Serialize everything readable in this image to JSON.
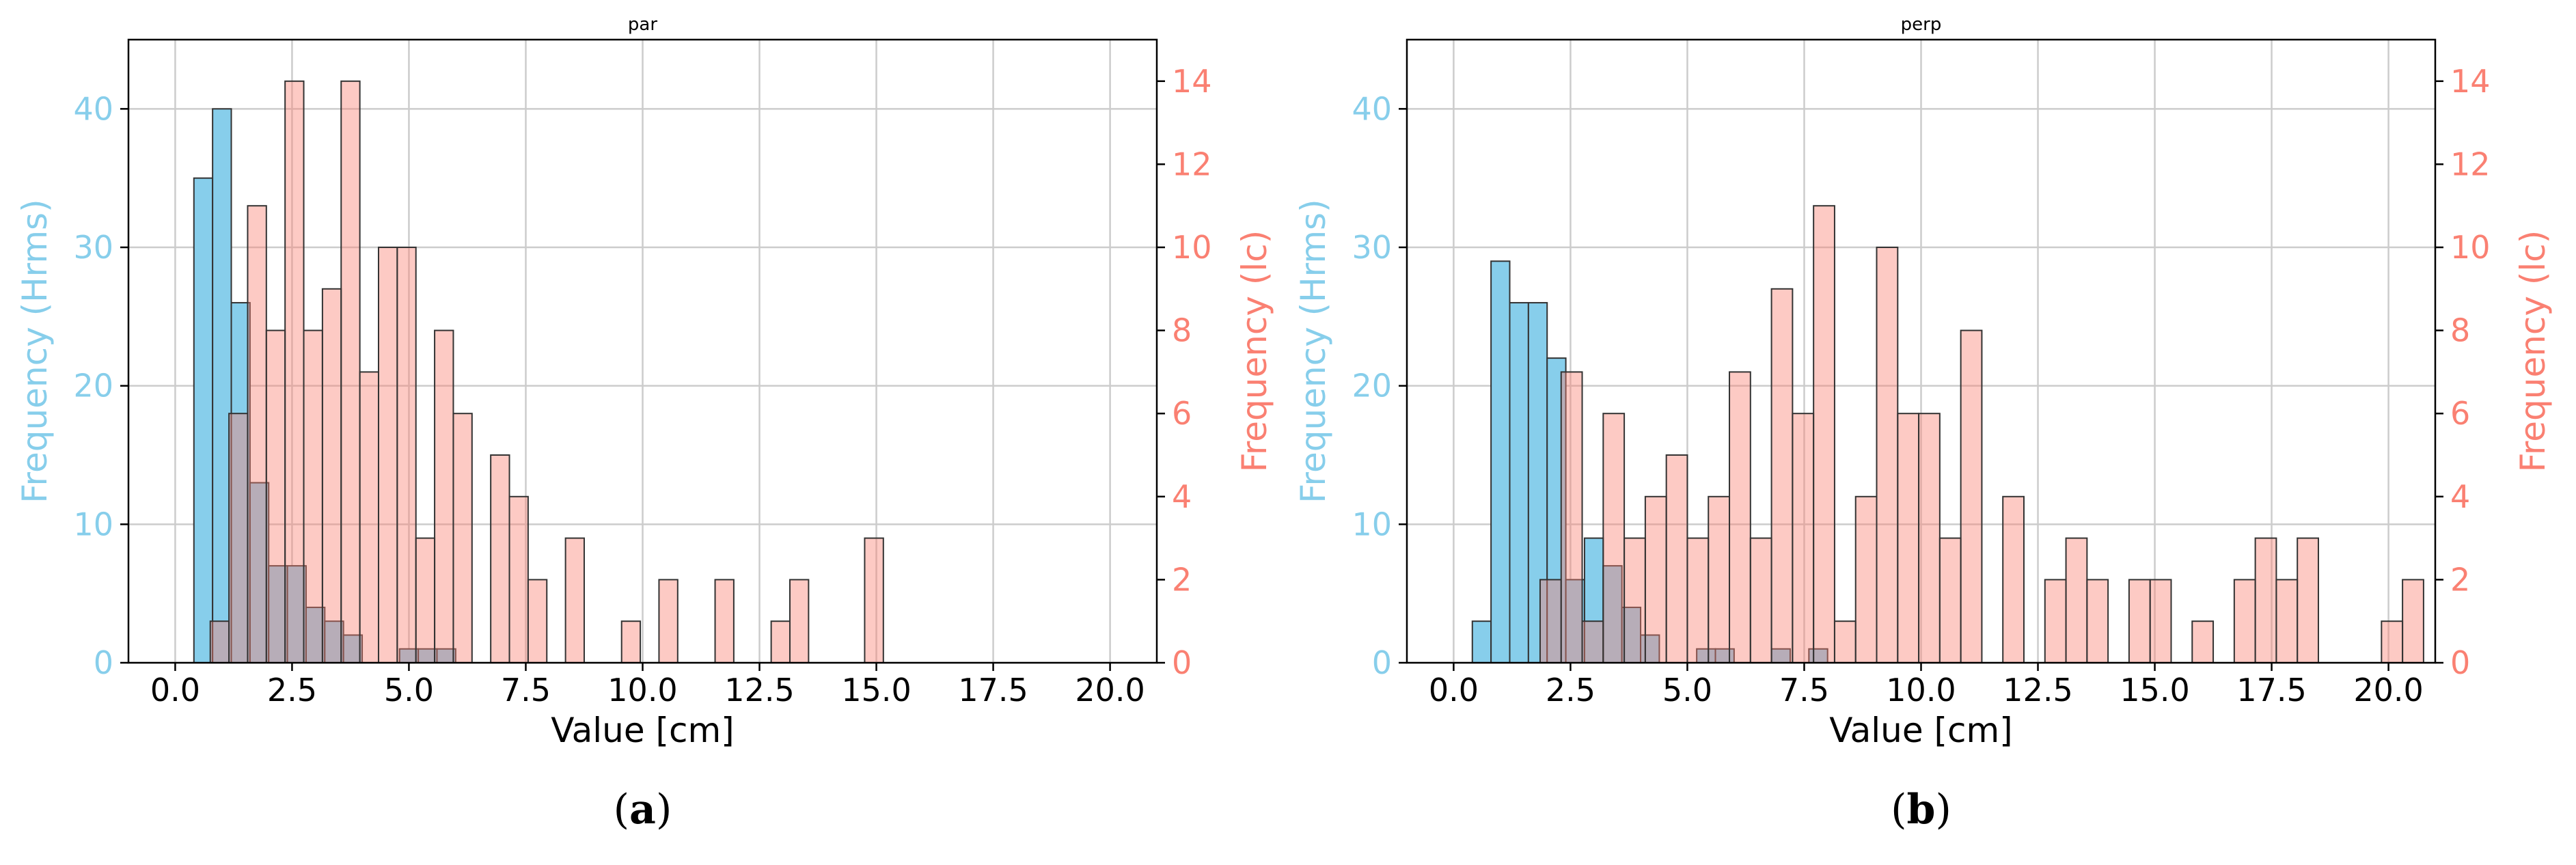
{
  "colors": {
    "hrms_fill": "#87ceeb",
    "hrms_text": "#87ceeb",
    "lc_fill": "#fa8072",
    "lc_text": "#fa8072",
    "overlap_fill": "#b3a0a6",
    "grid": "#cccccc",
    "bar_edge": "#333333"
  },
  "chart_data": [
    {
      "type": "bar",
      "title": "par",
      "panel_label": "(a)",
      "panel_letter": "a",
      "xlabel": "Value [cm]",
      "ylabel_left": "Frequency (Hrms)",
      "ylabel_right": "Frequency (lc)",
      "xlim": [
        -1.0,
        21.0
      ],
      "ylim_left": [
        0,
        45
      ],
      "ylim_right": [
        0,
        15
      ],
      "xticks": [
        "0.0",
        "2.5",
        "5.0",
        "7.5",
        "10.0",
        "12.5",
        "15.0",
        "17.5",
        "20.0"
      ],
      "yticks_left": [
        "0",
        "10",
        "20",
        "30",
        "40"
      ],
      "yticks_right": [
        "0",
        "2",
        "4",
        "6",
        "8",
        "10",
        "12",
        "14"
      ],
      "grid": true,
      "series": [
        {
          "name": "Hrms",
          "axis": "left",
          "bins": [
            {
              "x0": 0.4,
              "x1": 0.8,
              "count": 35
            },
            {
              "x0": 0.8,
              "x1": 1.2,
              "count": 40
            },
            {
              "x0": 1.2,
              "x1": 1.6,
              "count": 26
            },
            {
              "x0": 1.6,
              "x1": 2.0,
              "count": 13
            },
            {
              "x0": 2.0,
              "x1": 2.4,
              "count": 7
            },
            {
              "x0": 2.4,
              "x1": 2.8,
              "count": 7
            },
            {
              "x0": 2.8,
              "x1": 3.2,
              "count": 4
            },
            {
              "x0": 3.2,
              "x1": 3.6,
              "count": 3
            },
            {
              "x0": 3.6,
              "x1": 4.0,
              "count": 2
            },
            {
              "x0": 4.0,
              "x1": 4.4,
              "count": 0
            },
            {
              "x0": 4.4,
              "x1": 4.8,
              "count": 0
            },
            {
              "x0": 4.8,
              "x1": 5.2,
              "count": 1
            },
            {
              "x0": 5.2,
              "x1": 5.6,
              "count": 1
            },
            {
              "x0": 5.6,
              "x1": 6.0,
              "count": 1
            }
          ]
        },
        {
          "name": "lc",
          "axis": "right",
          "bins": [
            {
              "x0": 0.75,
              "x1": 1.15,
              "count": 1
            },
            {
              "x0": 1.15,
              "x1": 1.55,
              "count": 6
            },
            {
              "x0": 1.55,
              "x1": 1.95,
              "count": 11
            },
            {
              "x0": 1.95,
              "x1": 2.35,
              "count": 8
            },
            {
              "x0": 2.35,
              "x1": 2.75,
              "count": 14
            },
            {
              "x0": 2.75,
              "x1": 3.15,
              "count": 8
            },
            {
              "x0": 3.15,
              "x1": 3.55,
              "count": 9
            },
            {
              "x0": 3.55,
              "x1": 3.95,
              "count": 14
            },
            {
              "x0": 3.95,
              "x1": 4.35,
              "count": 7
            },
            {
              "x0": 4.35,
              "x1": 4.75,
              "count": 10
            },
            {
              "x0": 4.75,
              "x1": 5.15,
              "count": 10
            },
            {
              "x0": 5.15,
              "x1": 5.55,
              "count": 3
            },
            {
              "x0": 5.55,
              "x1": 5.95,
              "count": 8
            },
            {
              "x0": 5.95,
              "x1": 6.35,
              "count": 6
            },
            {
              "x0": 6.75,
              "x1": 7.15,
              "count": 5
            },
            {
              "x0": 7.15,
              "x1": 7.55,
              "count": 4
            },
            {
              "x0": 7.55,
              "x1": 7.95,
              "count": 2
            },
            {
              "x0": 8.35,
              "x1": 8.75,
              "count": 3
            },
            {
              "x0": 9.55,
              "x1": 9.95,
              "count": 1
            },
            {
              "x0": 10.35,
              "x1": 10.75,
              "count": 2
            },
            {
              "x0": 11.55,
              "x1": 11.95,
              "count": 2
            },
            {
              "x0": 12.75,
              "x1": 13.15,
              "count": 1
            },
            {
              "x0": 13.15,
              "x1": 13.55,
              "count": 2
            },
            {
              "x0": 14.75,
              "x1": 15.15,
              "count": 3
            }
          ]
        }
      ]
    },
    {
      "type": "bar",
      "title": "perp",
      "panel_label": "(b)",
      "panel_letter": "b",
      "xlabel": "Value [cm]",
      "ylabel_left": "Frequency (Hrms)",
      "ylabel_right": "Frequency (lc)",
      "xlim": [
        -1.0,
        21.0
      ],
      "ylim_left": [
        0,
        45
      ],
      "ylim_right": [
        0,
        15
      ],
      "xticks": [
        "0.0",
        "2.5",
        "5.0",
        "7.5",
        "10.0",
        "12.5",
        "15.0",
        "17.5",
        "20.0"
      ],
      "yticks_left": [
        "0",
        "10",
        "20",
        "30",
        "40"
      ],
      "yticks_right": [
        "0",
        "2",
        "4",
        "6",
        "8",
        "10",
        "12",
        "14"
      ],
      "grid": true,
      "series": [
        {
          "name": "Hrms",
          "axis": "left",
          "bins": [
            {
              "x0": 0.4,
              "x1": 0.8,
              "count": 3
            },
            {
              "x0": 0.8,
              "x1": 1.2,
              "count": 29
            },
            {
              "x0": 1.2,
              "x1": 1.6,
              "count": 26
            },
            {
              "x0": 1.6,
              "x1": 2.0,
              "count": 26
            },
            {
              "x0": 2.0,
              "x1": 2.4,
              "count": 22
            },
            {
              "x0": 2.4,
              "x1": 2.8,
              "count": 6
            },
            {
              "x0": 2.8,
              "x1": 3.2,
              "count": 9
            },
            {
              "x0": 3.2,
              "x1": 3.6,
              "count": 7
            },
            {
              "x0": 3.6,
              "x1": 4.0,
              "count": 4
            },
            {
              "x0": 4.0,
              "x1": 4.4,
              "count": 2
            },
            {
              "x0": 4.4,
              "x1": 4.8,
              "count": 0
            },
            {
              "x0": 4.8,
              "x1": 5.2,
              "count": 0
            },
            {
              "x0": 5.2,
              "x1": 5.6,
              "count": 1
            },
            {
              "x0": 5.6,
              "x1": 6.0,
              "count": 1
            },
            {
              "x0": 6.0,
              "x1": 6.4,
              "count": 0
            },
            {
              "x0": 6.4,
              "x1": 6.8,
              "count": 0
            },
            {
              "x0": 6.8,
              "x1": 7.2,
              "count": 1
            },
            {
              "x0": 7.2,
              "x1": 7.6,
              "count": 0
            },
            {
              "x0": 7.6,
              "x1": 8.0,
              "count": 1
            }
          ]
        },
        {
          "name": "lc",
          "axis": "right",
          "bins": [
            {
              "x0": 1.85,
              "x1": 2.3,
              "count": 2
            },
            {
              "x0": 2.3,
              "x1": 2.75,
              "count": 7
            },
            {
              "x0": 2.75,
              "x1": 3.2,
              "count": 1
            },
            {
              "x0": 3.2,
              "x1": 3.65,
              "count": 6
            },
            {
              "x0": 3.65,
              "x1": 4.1,
              "count": 3
            },
            {
              "x0": 4.1,
              "x1": 4.55,
              "count": 4
            },
            {
              "x0": 4.55,
              "x1": 5.0,
              "count": 5
            },
            {
              "x0": 5.0,
              "x1": 5.45,
              "count": 3
            },
            {
              "x0": 5.45,
              "x1": 5.9,
              "count": 4
            },
            {
              "x0": 5.9,
              "x1": 6.35,
              "count": 7
            },
            {
              "x0": 6.35,
              "x1": 6.8,
              "count": 3
            },
            {
              "x0": 6.8,
              "x1": 7.25,
              "count": 9
            },
            {
              "x0": 7.25,
              "x1": 7.7,
              "count": 6
            },
            {
              "x0": 7.7,
              "x1": 8.15,
              "count": 11
            },
            {
              "x0": 8.15,
              "x1": 8.6,
              "count": 1
            },
            {
              "x0": 8.6,
              "x1": 9.05,
              "count": 4
            },
            {
              "x0": 9.05,
              "x1": 9.5,
              "count": 10
            },
            {
              "x0": 9.5,
              "x1": 9.95,
              "count": 6
            },
            {
              "x0": 9.95,
              "x1": 10.4,
              "count": 6
            },
            {
              "x0": 10.4,
              "x1": 10.85,
              "count": 3
            },
            {
              "x0": 10.85,
              "x1": 11.3,
              "count": 8
            },
            {
              "x0": 11.75,
              "x1": 12.2,
              "count": 4
            },
            {
              "x0": 12.65,
              "x1": 13.1,
              "count": 2
            },
            {
              "x0": 13.1,
              "x1": 13.55,
              "count": 3
            },
            {
              "x0": 13.55,
              "x1": 14.0,
              "count": 2
            },
            {
              "x0": 14.45,
              "x1": 14.9,
              "count": 2
            },
            {
              "x0": 14.9,
              "x1": 15.35,
              "count": 2
            },
            {
              "x0": 15.8,
              "x1": 16.25,
              "count": 1
            },
            {
              "x0": 16.7,
              "x1": 17.15,
              "count": 2
            },
            {
              "x0": 17.15,
              "x1": 17.6,
              "count": 3
            },
            {
              "x0": 17.6,
              "x1": 18.05,
              "count": 2
            },
            {
              "x0": 18.05,
              "x1": 18.5,
              "count": 3
            },
            {
              "x0": 19.85,
              "x1": 20.3,
              "count": 1
            },
            {
              "x0": 20.3,
              "x1": 20.75,
              "count": 2
            }
          ]
        }
      ]
    }
  ]
}
